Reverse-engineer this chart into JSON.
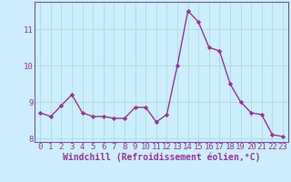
{
  "x": [
    0,
    1,
    2,
    3,
    4,
    5,
    6,
    7,
    8,
    9,
    10,
    11,
    12,
    13,
    14,
    15,
    16,
    17,
    18,
    19,
    20,
    21,
    22,
    23
  ],
  "y": [
    8.7,
    8.6,
    8.9,
    9.2,
    8.7,
    8.6,
    8.6,
    8.55,
    8.55,
    8.85,
    8.85,
    8.45,
    8.65,
    10.0,
    11.5,
    11.2,
    10.5,
    10.4,
    9.5,
    9.0,
    8.7,
    8.65,
    8.1,
    8.05
  ],
  "line_color": "#993399",
  "marker": "D",
  "marker_size": 2.2,
  "line_width": 1.0,
  "bg_color": "#cceeff",
  "grid_color": "#aadddd",
  "xlabel": "Windchill (Refroidissement éolien,°C)",
  "xlabel_color": "#993399",
  "tick_color": "#993399",
  "xlim": [
    -0.5,
    23.5
  ],
  "ylim": [
    7.9,
    11.75
  ],
  "yticks": [
    8,
    9,
    10,
    11
  ],
  "xticks": [
    0,
    1,
    2,
    3,
    4,
    5,
    6,
    7,
    8,
    9,
    10,
    11,
    12,
    13,
    14,
    15,
    16,
    17,
    18,
    19,
    20,
    21,
    22,
    23
  ],
  "spine_color": "#7755aa",
  "font_size_xlabel": 7.0,
  "font_size_ticks": 6.5
}
